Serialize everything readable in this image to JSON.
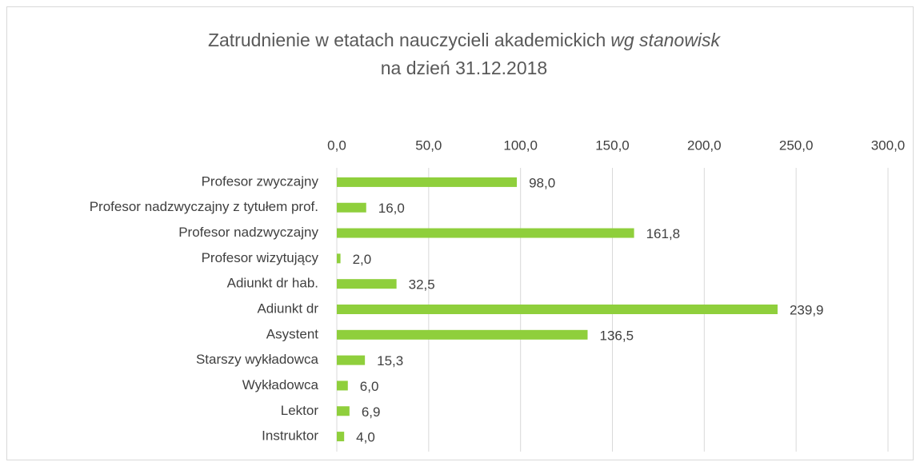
{
  "chart_data": {
    "type": "bar",
    "orientation": "horizontal",
    "title": "Zatrudnienie w etatach nauczycieli akademickich",
    "title_italic": "wg stanowisk",
    "subtitle": "na dzień 31.12.2018",
    "categories": [
      "Profesor zwyczajny",
      "Profesor nadzwyczajny z tytułem prof.",
      "Profesor nadzwyczajny",
      "Profesor wizytujący",
      "Adiunkt dr hab.",
      "Adiunkt dr",
      "Asystent",
      "Starszy wykładowca",
      "Wykładowca",
      "Lektor",
      "Instruktor"
    ],
    "values": [
      98.0,
      16.0,
      161.8,
      2.0,
      32.5,
      239.9,
      136.5,
      15.3,
      6.0,
      6.9,
      4.0
    ],
    "value_labels": [
      "98,0",
      "16,0",
      "161,8",
      "2,0",
      "32,5",
      "239,9",
      "136,5",
      "15,3",
      "6,0",
      "6,9",
      "4,0"
    ],
    "color": "#8fcf3c",
    "xlim": [
      0,
      300
    ],
    "xticks": [
      {
        "value": 0,
        "label": "0,0"
      },
      {
        "value": 50,
        "label": "50,0"
      },
      {
        "value": 100,
        "label": "100,0"
      },
      {
        "value": 150,
        "label": "150,0"
      },
      {
        "value": 200,
        "label": "200,0"
      },
      {
        "value": 250,
        "label": "250,0"
      },
      {
        "value": 300,
        "label": "300,0"
      }
    ],
    "grid": true
  }
}
